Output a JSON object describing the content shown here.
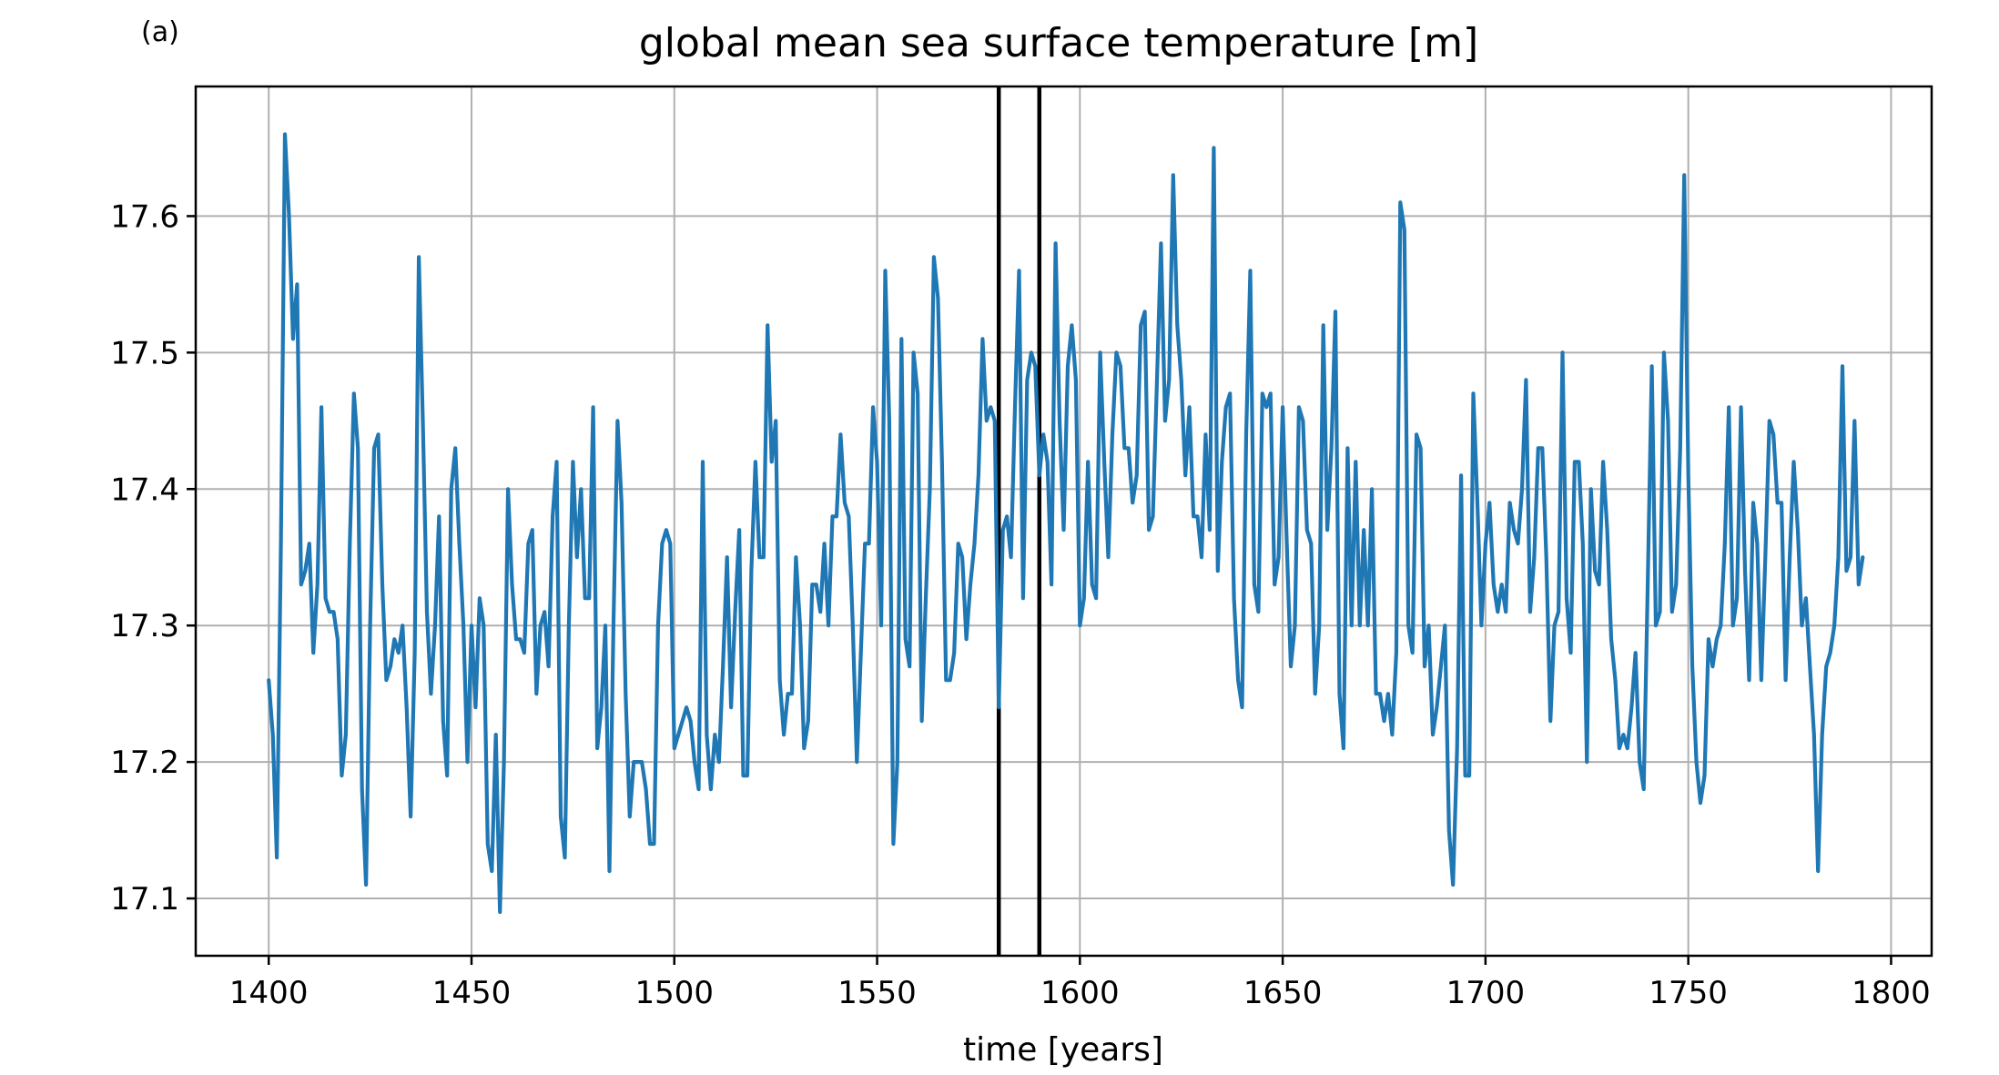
{
  "panel_label": "(a)",
  "chart_data": {
    "type": "line",
    "title": "global mean sea surface temperature [m]",
    "xlabel": "time [years]",
    "ylabel": "",
    "xlim": [
      1382,
      1810
    ],
    "ylim": [
      17.058,
      17.695
    ],
    "xticks": [
      1400,
      1450,
      1500,
      1550,
      1600,
      1650,
      1700,
      1750,
      1800
    ],
    "yticks": [
      17.1,
      17.2,
      17.3,
      17.4,
      17.5,
      17.6
    ],
    "xtick_labels": [
      "1400",
      "1450",
      "1500",
      "1550",
      "1600",
      "1650",
      "1700",
      "1750",
      "1800"
    ],
    "ytick_labels": [
      "17.1",
      "17.2",
      "17.3",
      "17.4",
      "17.5",
      "17.6"
    ],
    "grid": true,
    "vertical_lines": [
      1580,
      1590
    ],
    "vertical_line_color": "#000000",
    "series": [
      {
        "name": "",
        "color": "#1f77b4",
        "x_start": 1400,
        "x_step": 1,
        "values": [
          17.26,
          17.22,
          17.13,
          17.36,
          17.66,
          17.6,
          17.51,
          17.55,
          17.33,
          17.34,
          17.36,
          17.28,
          17.33,
          17.46,
          17.32,
          17.31,
          17.31,
          17.29,
          17.19,
          17.22,
          17.36,
          17.47,
          17.43,
          17.18,
          17.11,
          17.3,
          17.43,
          17.44,
          17.33,
          17.26,
          17.27,
          17.29,
          17.28,
          17.3,
          17.24,
          17.16,
          17.28,
          17.57,
          17.45,
          17.31,
          17.25,
          17.3,
          17.38,
          17.23,
          17.19,
          17.4,
          17.43,
          17.36,
          17.3,
          17.2,
          17.3,
          17.24,
          17.32,
          17.3,
          17.14,
          17.12,
          17.22,
          17.09,
          17.2,
          17.4,
          17.33,
          17.29,
          17.29,
          17.28,
          17.36,
          17.37,
          17.25,
          17.3,
          17.31,
          17.27,
          17.38,
          17.42,
          17.16,
          17.13,
          17.3,
          17.42,
          17.35,
          17.4,
          17.32,
          17.32,
          17.46,
          17.21,
          17.24,
          17.3,
          17.12,
          17.3,
          17.45,
          17.39,
          17.25,
          17.16,
          17.2,
          17.2,
          17.2,
          17.18,
          17.14,
          17.14,
          17.3,
          17.36,
          17.37,
          17.36,
          17.21,
          17.22,
          17.23,
          17.24,
          17.23,
          17.2,
          17.18,
          17.42,
          17.22,
          17.18,
          17.22,
          17.2,
          17.27,
          17.35,
          17.24,
          17.31,
          17.37,
          17.19,
          17.19,
          17.34,
          17.42,
          17.35,
          17.35,
          17.52,
          17.42,
          17.45,
          17.26,
          17.22,
          17.25,
          17.25,
          17.35,
          17.3,
          17.21,
          17.23,
          17.33,
          17.33,
          17.31,
          17.36,
          17.3,
          17.38,
          17.38,
          17.44,
          17.39,
          17.38,
          17.3,
          17.2,
          17.28,
          17.36,
          17.36,
          17.46,
          17.42,
          17.3,
          17.56,
          17.45,
          17.14,
          17.2,
          17.51,
          17.29,
          17.27,
          17.5,
          17.47,
          17.23,
          17.32,
          17.4,
          17.57,
          17.54,
          17.42,
          17.26,
          17.26,
          17.28,
          17.36,
          17.35,
          17.29,
          17.33,
          17.36,
          17.41,
          17.51,
          17.45,
          17.46,
          17.45,
          17.24,
          17.37,
          17.38,
          17.35,
          17.46,
          17.56,
          17.32,
          17.48,
          17.5,
          17.49,
          17.41,
          17.44,
          17.42,
          17.33,
          17.58,
          17.45,
          17.37,
          17.49,
          17.52,
          17.48,
          17.3,
          17.32,
          17.42,
          17.33,
          17.32,
          17.5,
          17.42,
          17.35,
          17.44,
          17.5,
          17.49,
          17.43,
          17.43,
          17.39,
          17.41,
          17.52,
          17.53,
          17.37,
          17.38,
          17.48,
          17.58,
          17.45,
          17.48,
          17.63,
          17.52,
          17.48,
          17.41,
          17.46,
          17.38,
          17.38,
          17.35,
          17.44,
          17.37,
          17.65,
          17.34,
          17.42,
          17.46,
          17.47,
          17.32,
          17.26,
          17.24,
          17.44,
          17.56,
          17.33,
          17.31,
          17.47,
          17.46,
          17.47,
          17.33,
          17.35,
          17.46,
          17.36,
          17.27,
          17.3,
          17.46,
          17.45,
          17.37,
          17.36,
          17.25,
          17.3,
          17.52,
          17.37,
          17.43,
          17.53,
          17.25,
          17.21,
          17.43,
          17.3,
          17.42,
          17.3,
          17.37,
          17.3,
          17.4,
          17.25,
          17.25,
          17.23,
          17.25,
          17.22,
          17.28,
          17.61,
          17.59,
          17.3,
          17.28,
          17.44,
          17.43,
          17.27,
          17.3,
          17.22,
          17.24,
          17.27,
          17.3,
          17.15,
          17.11,
          17.21,
          17.41,
          17.19,
          17.19,
          17.47,
          17.39,
          17.3,
          17.36,
          17.39,
          17.33,
          17.31,
          17.33,
          17.31,
          17.39,
          17.37,
          17.36,
          17.4,
          17.48,
          17.31,
          17.35,
          17.43,
          17.43,
          17.35,
          17.23,
          17.3,
          17.31,
          17.5,
          17.32,
          17.28,
          17.42,
          17.42,
          17.36,
          17.2,
          17.4,
          17.34,
          17.33,
          17.42,
          17.37,
          17.29,
          17.26,
          17.21,
          17.22,
          17.21,
          17.24,
          17.28,
          17.2,
          17.18,
          17.33,
          17.49,
          17.3,
          17.31,
          17.5,
          17.45,
          17.31,
          17.33,
          17.43,
          17.63,
          17.41,
          17.27,
          17.2,
          17.17,
          17.19,
          17.29,
          17.27,
          17.29,
          17.3,
          17.36,
          17.46,
          17.3,
          17.32,
          17.46,
          17.34,
          17.26,
          17.39,
          17.36,
          17.26,
          17.35,
          17.45,
          17.44,
          17.39,
          17.39,
          17.26,
          17.35,
          17.42,
          17.37,
          17.3,
          17.32,
          17.27,
          17.22,
          17.12,
          17.22,
          17.27,
          17.28,
          17.3,
          17.35,
          17.49,
          17.34,
          17.35,
          17.45,
          17.33,
          17.35
        ]
      }
    ]
  }
}
